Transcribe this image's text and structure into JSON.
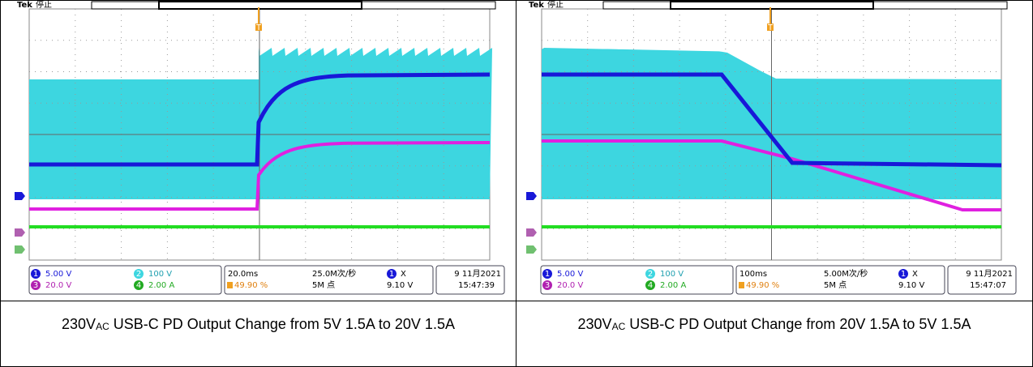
{
  "panels": [
    {
      "header": {
        "brand": "Tek",
        "state": "停止",
        "trigger_marker": "T"
      },
      "status": {
        "channels": [
          {
            "number": "1",
            "scale": "5.00 V"
          },
          {
            "number": "2",
            "scale": "100 V"
          },
          {
            "number": "3",
            "scale": "20.0 V"
          },
          {
            "number": "4",
            "scale": "2.00 A"
          }
        ],
        "timebase": "20.0ms",
        "sample_rate": "25.0M次/秒",
        "trigger_position": "49.90 %",
        "record_length": "5M 点",
        "trigger_source": "1",
        "trigger_type": "X",
        "trigger_level": "9.10 V",
        "date": "9 11月2021",
        "time": "15:47:39"
      },
      "caption": {
        "prefix": "230V",
        "subscript": "AC",
        "text": " USB-C PD Output Change from 5V 1.5A to 20V 1.5A"
      }
    },
    {
      "header": {
        "brand": "Tek",
        "state": "停止",
        "trigger_marker": "T"
      },
      "status": {
        "channels": [
          {
            "number": "1",
            "scale": "5.00 V"
          },
          {
            "number": "2",
            "scale": "100 V"
          },
          {
            "number": "3",
            "scale": "20.0 V"
          },
          {
            "number": "4",
            "scale": "2.00 A"
          }
        ],
        "timebase": "100ms",
        "sample_rate": "5.00M次/秒",
        "trigger_position": "49.90 %",
        "record_length": "5M 点",
        "trigger_source": "1",
        "trigger_type": "X",
        "trigger_level": "9.10 V",
        "date": "9 11月2021",
        "time": "15:47:07"
      },
      "caption": {
        "prefix": "230V",
        "subscript": "AC",
        "text": " USB-C PD Output Change from 20V 1.5A to 5V 1.5A"
      }
    }
  ]
}
